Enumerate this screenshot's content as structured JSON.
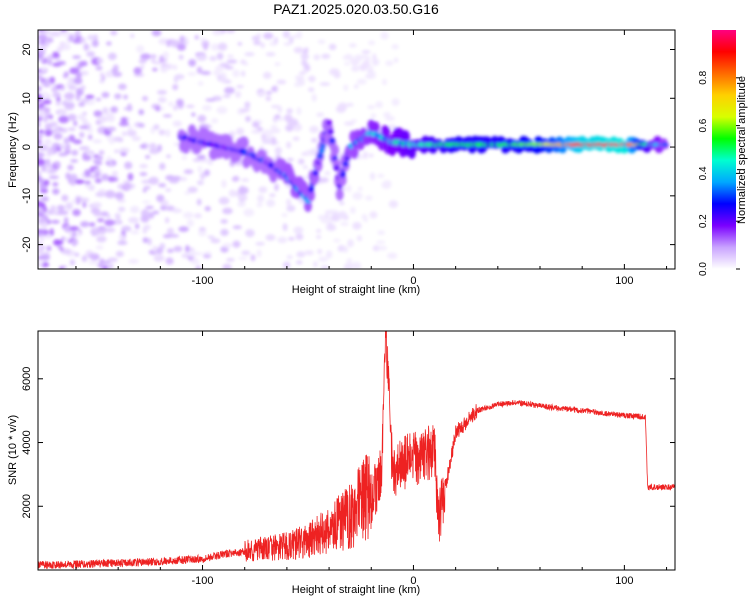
{
  "title": "PAZ1.2025.020.03.50.G16",
  "chart_data": [
    {
      "type": "heatmap",
      "xlabel": "Height of straight line (km)",
      "ylabel": "Frequency (Hz)",
      "xlim": [
        -178,
        124
      ],
      "ylim": [
        -25,
        24
      ],
      "xticks": [
        -100,
        0,
        100
      ],
      "xtick_labels": [
        "-100",
        "0",
        "100"
      ],
      "yticks": [
        -20,
        -10,
        0,
        10,
        20
      ],
      "ytick_labels": [
        "-20",
        "-10",
        "0",
        "10",
        "20"
      ],
      "colorbar": {
        "label": "Normalized spectral amplitude",
        "range": [
          0,
          1
        ],
        "ticks": [
          0.0,
          0.2,
          0.4,
          0.6,
          0.8
        ],
        "tick_labels": [
          "0.0",
          "0.2",
          "0.4",
          "0.6",
          "0.8"
        ],
        "colors": [
          "#ffffff",
          "#c9a3ff",
          "#7a00ff",
          "#0000ff",
          "#00a8ff",
          "#00ffd0",
          "#00ff00",
          "#d8ff00",
          "#ffd000",
          "#ff6a00",
          "#ff0000",
          "#ff0080"
        ]
      },
      "ridge": [
        {
          "x": -110,
          "y": 2,
          "amp": 0.2
        },
        {
          "x": -100,
          "y": 1,
          "amp": 0.25
        },
        {
          "x": -90,
          "y": 0,
          "amp": 0.2
        },
        {
          "x": -80,
          "y": -1,
          "amp": 0.25
        },
        {
          "x": -70,
          "y": -3,
          "amp": 0.25
        },
        {
          "x": -60,
          "y": -6,
          "amp": 0.3
        },
        {
          "x": -50,
          "y": -11,
          "amp": 0.3
        },
        {
          "x": -40,
          "y": 5,
          "amp": 0.25
        },
        {
          "x": -35,
          "y": -8,
          "amp": 0.2
        },
        {
          "x": -30,
          "y": 0,
          "amp": 0.3
        },
        {
          "x": -20,
          "y": 3,
          "amp": 0.35
        },
        {
          "x": -10,
          "y": 1,
          "amp": 0.4
        },
        {
          "x": 0,
          "y": 0.5,
          "amp": 0.45
        },
        {
          "x": 10,
          "y": 0.5,
          "amp": 0.5
        },
        {
          "x": 20,
          "y": 0.5,
          "amp": 0.55
        },
        {
          "x": 40,
          "y": 0.5,
          "amp": 0.55
        },
        {
          "x": 60,
          "y": 0.5,
          "amp": 0.6
        },
        {
          "x": 80,
          "y": 0.5,
          "amp": 0.9
        },
        {
          "x": 100,
          "y": 0.5,
          "amp": 0.95
        },
        {
          "x": 110,
          "y": 0.5,
          "amp": 0.5
        },
        {
          "x": 120,
          "y": 0.5,
          "amp": 0.3
        }
      ]
    },
    {
      "type": "line",
      "xlabel": "Height of straight line (km)",
      "ylabel": "SNR (10 * v/v)",
      "xlim": [
        -178,
        124
      ],
      "ylim": [
        0,
        7500
      ],
      "xticks": [
        -100,
        0,
        100
      ],
      "xtick_labels": [
        "-100",
        "0",
        "100"
      ],
      "yticks": [
        2000,
        4000,
        6000
      ],
      "ytick_labels": [
        "2000",
        "4000",
        "6000"
      ],
      "color": "#ee2222",
      "x": [
        -178,
        -150,
        -125,
        -100,
        -90,
        -75,
        -60,
        -50,
        -40,
        -30,
        -25,
        -20,
        -15,
        -13,
        -10,
        -5,
        0,
        10,
        12,
        20,
        30,
        40,
        50,
        60,
        80,
        100,
        110,
        111,
        124
      ],
      "y": [
        100,
        150,
        200,
        300,
        450,
        550,
        650,
        800,
        1100,
        1500,
        1800,
        2200,
        3000,
        7500,
        3200,
        3300,
        3500,
        3700,
        1500,
        4300,
        5000,
        5200,
        5250,
        5150,
        5000,
        4850,
        4800,
        2600,
        2600
      ]
    }
  ]
}
